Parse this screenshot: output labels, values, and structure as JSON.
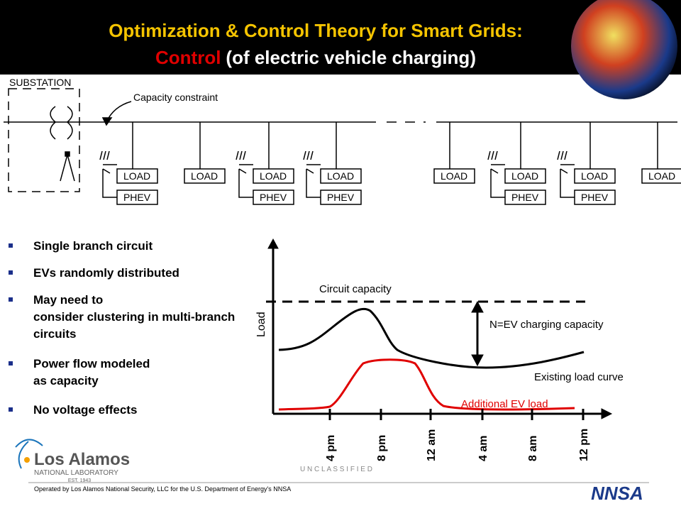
{
  "header": {
    "title_line1": "Optimization & Control Theory for Smart Grids:",
    "title_control": "Control",
    "title_rest": "(of electric vehicle charging)"
  },
  "diagram": {
    "substation": "SUBSTATION",
    "capacity_constraint": "Capacity constraint",
    "load": "LOAD",
    "phev": "PHEV"
  },
  "bullets": [
    "Single branch circuit",
    "EVs randomly distributed",
    "May need to consider clustering in multi-branch circuits",
    "Power flow modeled as capacity",
    "No voltage effects"
  ],
  "plot": {
    "y_label": "Load",
    "circuit_capacity": "Circuit capacity",
    "ev_capacity": "N=EV charging capacity",
    "existing": "Existing load curve",
    "additional": "Additional EV load",
    "times": [
      "4 pm",
      "8 pm",
      "12 am",
      "4 am",
      "8 am",
      "12 pm"
    ]
  },
  "footer": {
    "logo_name": "Los Alamos",
    "logo_sub": "NATIONAL LABORATORY",
    "logo_est": "EST. 1943",
    "classification": "U N C L A S S I F I E D",
    "operated": "Operated by Los Alamos National Security, LLC for the U.S. Department of Energy's NNSA",
    "nnsa": "NNSA"
  }
}
